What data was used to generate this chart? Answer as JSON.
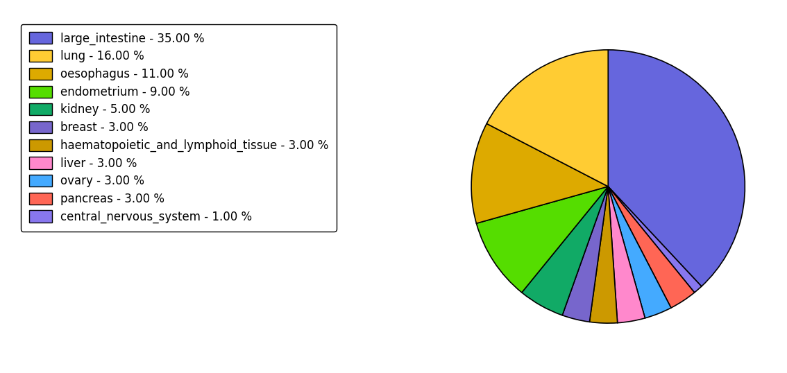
{
  "labels": [
    "large_intestine - 35.00 %",
    "lung - 16.00 %",
    "oesophagus - 11.00 %",
    "endometrium - 9.00 %",
    "kidney - 5.00 %",
    "breast - 3.00 %",
    "haematopoietic_and_lymphoid_tissue - 3.00 %",
    "liver - 3.00 %",
    "ovary - 3.00 %",
    "pancreas - 3.00 %",
    "central_nervous_system - 1.00 %"
  ],
  "values": [
    35,
    16,
    11,
    9,
    5,
    3,
    3,
    3,
    3,
    3,
    1
  ],
  "colors": [
    "#6666dd",
    "#ffcc33",
    "#ddaa00",
    "#55dd00",
    "#11aa66",
    "#7766cc",
    "#cc9900",
    "#ff88cc",
    "#44aaff",
    "#ff6655",
    "#8877ee"
  ],
  "pie_order_indices": [
    0,
    10,
    9,
    8,
    7,
    6,
    5,
    4,
    3,
    2,
    1
  ],
  "background_color": "#ffffff",
  "legend_fontsize": 12,
  "pie_startangle": 90,
  "title": ""
}
